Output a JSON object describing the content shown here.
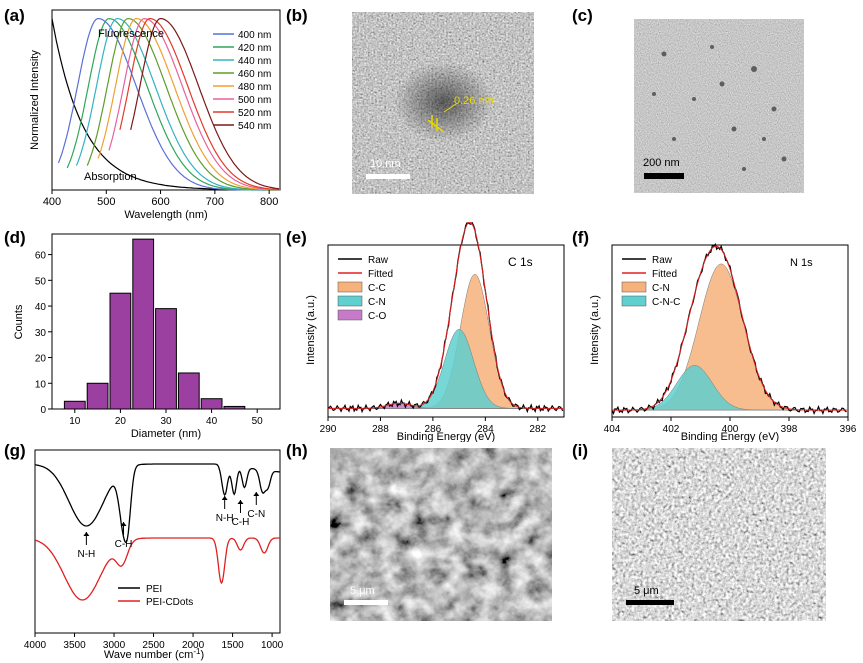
{
  "panel_labels": [
    "(a)",
    "(b)",
    "(c)",
    "(d)",
    "(e)",
    "(f)",
    "(g)",
    "(h)",
    "(i)"
  ],
  "a": {
    "type": "line",
    "xlabel": "Wavelength (nm)",
    "ylabel": "Normalized Intensity",
    "xticks": [
      "400",
      "500",
      "600",
      "700",
      "800"
    ],
    "xlim": [
      400,
      820
    ],
    "ylim": [
      0,
      1.05
    ],
    "annot_fluor": "Fluorescence",
    "annot_abs": "Absorption",
    "legend": [
      {
        "label": "400 nm",
        "color": "#5a6fd8",
        "peak": 485,
        "start": 412
      },
      {
        "label": "420 nm",
        "color": "#2fa65a",
        "peak": 505,
        "start": 428
      },
      {
        "label": "440 nm",
        "color": "#33b3c2",
        "peak": 520,
        "start": 445
      },
      {
        "label": "460 nm",
        "color": "#5f9d2a",
        "peak": 540,
        "start": 465
      },
      {
        "label": "480 nm",
        "color": "#f0a030",
        "peak": 555,
        "start": 485
      },
      {
        "label": "500 nm",
        "color": "#e8629c",
        "peak": 570,
        "start": 505
      },
      {
        "label": "520 nm",
        "color": "#e23a2a",
        "peak": 580,
        "start": 525
      },
      {
        "label": "540 nm",
        "color": "#7a1a1a",
        "peak": 600,
        "start": 545
      }
    ],
    "absorption_color": "#000000"
  },
  "b": {
    "scale_label": "10 nm",
    "lattice_label": "0.26 nm"
  },
  "c": {
    "scale_label": "200 nm"
  },
  "d": {
    "type": "bar",
    "xlabel": "Diameter (nm)",
    "ylabel": "Counts",
    "x": [
      10,
      15,
      20,
      25,
      30,
      35,
      40,
      45,
      50
    ],
    "values": [
      3,
      10,
      45,
      66,
      39,
      14,
      4,
      1,
      0
    ],
    "xticks": [
      "10",
      "20",
      "30",
      "40",
      "50"
    ],
    "yticks": [
      "0",
      "10",
      "20",
      "30",
      "40",
      "50",
      "60"
    ],
    "xlim": [
      5,
      55
    ],
    "ylim": [
      0,
      68
    ]
  },
  "e": {
    "type": "line",
    "title": "C 1s",
    "xlabel": "Binding Energy (eV)",
    "ylabel": "Intensity (a.u.)",
    "xticks": [
      "290",
      "288",
      "286",
      "284",
      "282"
    ],
    "xlim": [
      290,
      281
    ],
    "legend": [
      {
        "label": "Raw",
        "color": "#000000",
        "kind": "line"
      },
      {
        "label": "Fitted",
        "color": "#e02020",
        "kind": "line"
      },
      {
        "label": "C-C",
        "color": "#f6b27a",
        "kind": "box"
      },
      {
        "label": "C-N",
        "color": "#5fcfcf",
        "kind": "box"
      },
      {
        "label": "C-O",
        "color": "#c77ac8",
        "kind": "box"
      }
    ],
    "peaks": [
      {
        "center": 284.4,
        "height": 0.78,
        "width": 0.55
      },
      {
        "center": 285.0,
        "height": 0.46,
        "width": 0.55
      },
      {
        "center": 287.3,
        "height": 0.03,
        "width": 0.45
      }
    ]
  },
  "f": {
    "type": "line",
    "title": "N 1s",
    "xlabel": "Binding Energy (eV)",
    "ylabel": "Intensity (a.u.)",
    "xticks": [
      "404",
      "402",
      "400",
      "398",
      "396"
    ],
    "xlim": [
      404,
      396
    ],
    "legend": [
      {
        "label": "Raw",
        "color": "#000000",
        "kind": "line"
      },
      {
        "label": "Fitted",
        "color": "#e02020",
        "kind": "line"
      },
      {
        "label": "C-N",
        "color": "#f6b27a",
        "kind": "box"
      },
      {
        "label": "C-N-C",
        "color": "#5fcfcf",
        "kind": "box"
      }
    ],
    "peaks": [
      {
        "center": 400.3,
        "height": 0.85,
        "width": 0.75
      },
      {
        "center": 401.2,
        "height": 0.26,
        "width": 0.6
      }
    ]
  },
  "g": {
    "type": "line",
    "xlabel": "Wave number (cm",
    "xlabel_sup": "-1",
    "xlabel_end": ")",
    "xticks": [
      "4000",
      "3500",
      "3000",
      "2500",
      "2000",
      "1500",
      "1000"
    ],
    "xlim": [
      4000,
      900
    ],
    "legend": [
      {
        "label": "PEI",
        "color": "#000000"
      },
      {
        "label": "PEI-CDots",
        "color": "#e02020"
      }
    ],
    "annotations": [
      "N-H",
      "C-H",
      "N-H",
      "C-H",
      "C-N"
    ]
  },
  "h": {
    "scale_label": "5 μm"
  },
  "i": {
    "scale_label": "5 μm"
  }
}
